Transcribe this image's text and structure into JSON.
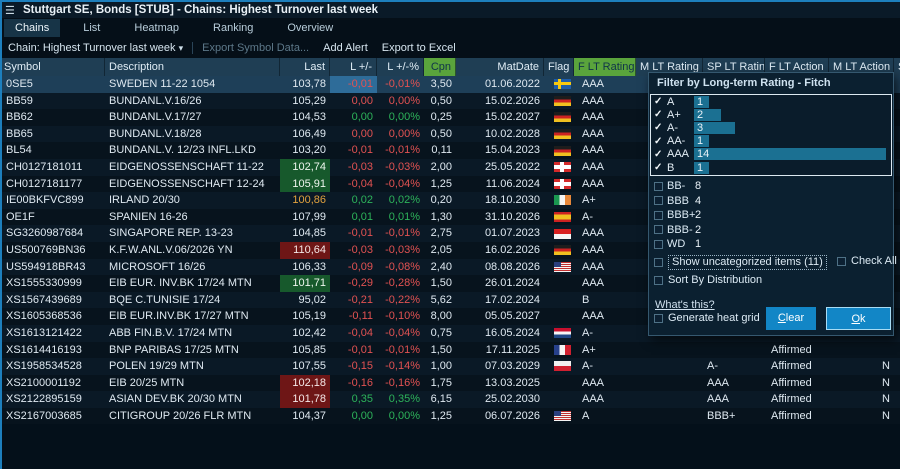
{
  "window": {
    "title": "Stuttgart SE, Bonds [STUB] - Chains: Highest Turnover last week"
  },
  "icons": {
    "menu": "☰",
    "dropdown_arrow": "▾",
    "check": "✓"
  },
  "colors": {
    "accent_blue": "#1d7fbd",
    "up_green": "#2db35a",
    "down_red": "#e25252",
    "header_green": "#5aa43c",
    "bar_teal": "#1b7092",
    "button_blue": "#1286c6",
    "flash_blue": "#2e6c99"
  },
  "tabs": [
    {
      "label": "Chains",
      "active": true
    },
    {
      "label": "List",
      "active": false
    },
    {
      "label": "Heatmap",
      "active": false
    },
    {
      "label": "Ranking",
      "active": false
    },
    {
      "label": "Overview",
      "active": false
    }
  ],
  "toolbar": {
    "chain_label": "Chain: Highest Turnover last week",
    "items": [
      {
        "label": "Export Symbol Data...",
        "disabled": true
      },
      {
        "label": "Add Alert",
        "disabled": false
      },
      {
        "label": "Export to Excel",
        "disabled": false
      }
    ]
  },
  "table": {
    "columns": [
      {
        "key": "symbol",
        "label": "Symbol",
        "align": "left",
        "green": false
      },
      {
        "key": "description",
        "label": "Description",
        "align": "left",
        "green": false
      },
      {
        "key": "last",
        "label": "Last",
        "align": "right",
        "green": false
      },
      {
        "key": "chg",
        "label": "L +/-",
        "align": "right",
        "green": false
      },
      {
        "key": "chgpct",
        "label": "L +/-%",
        "align": "right",
        "green": false
      },
      {
        "key": "cpn",
        "label": "Cpn",
        "align": "right",
        "green": true
      },
      {
        "key": "matdate",
        "label": "MatDate",
        "align": "right",
        "green": false
      },
      {
        "key": "flag",
        "label": "Flag",
        "align": "left",
        "green": false
      },
      {
        "key": "f-lt-rating",
        "label": "F LT Rating",
        "align": "left",
        "green": true
      },
      {
        "key": "m-lt-rating",
        "label": "M LT Rating",
        "align": "left",
        "green": false
      },
      {
        "key": "sp-lt-rating",
        "label": "SP LT Ratin",
        "align": "left",
        "green": false
      },
      {
        "key": "f-lt-action",
        "label": "F LT Action",
        "align": "left",
        "green": false
      },
      {
        "key": "m-lt-action",
        "label": "M LT Action",
        "align": "left",
        "green": false
      },
      {
        "key": "s-truncated",
        "label": "S",
        "align": "left",
        "green": false
      }
    ],
    "rows": [
      {
        "symbol": "0SE5",
        "desc": "SWEDEN 11-22 1054",
        "last": "103,78",
        "lastStyle": "",
        "chg": "-0,01",
        "chgPct": "-0,01%",
        "chgDir": "down",
        "chgFlash": true,
        "cpn": "3,50",
        "mat": "01.06.2022",
        "flag": "se",
        "fRating": "AAA",
        "spRating": "",
        "fAction": "",
        "mAction": "",
        "selected": true
      },
      {
        "symbol": "BB59",
        "desc": "BUNDANL.V.16/26",
        "last": "105,29",
        "lastStyle": "",
        "chg": "0,00",
        "chgPct": "0,00%",
        "chgDir": "down",
        "chgFlash": false,
        "cpn": "0,50",
        "mat": "15.02.2026",
        "flag": "de",
        "fRating": "AAA",
        "spRating": "",
        "fAction": "",
        "mAction": "",
        "selected": false
      },
      {
        "symbol": "BB62",
        "desc": "BUNDANL.V.17/27",
        "last": "104,53",
        "lastStyle": "",
        "chg": "0,00",
        "chgPct": "0,00%",
        "chgDir": "up",
        "chgFlash": false,
        "cpn": "0,25",
        "mat": "15.02.2027",
        "flag": "de",
        "fRating": "AAA",
        "spRating": "",
        "fAction": "",
        "mAction": "",
        "selected": false
      },
      {
        "symbol": "BB65",
        "desc": "BUNDANL.V.18/28",
        "last": "106,49",
        "lastStyle": "",
        "chg": "0,00",
        "chgPct": "0,00%",
        "chgDir": "down",
        "chgFlash": false,
        "cpn": "0,50",
        "mat": "10.02.2028",
        "flag": "de",
        "fRating": "AAA",
        "spRating": "",
        "fAction": "",
        "mAction": "",
        "selected": false
      },
      {
        "symbol": "BL54",
        "desc": "BUNDANL.V. 12/23 INFL.LKD",
        "last": "103,20",
        "lastStyle": "",
        "chg": "-0,01",
        "chgPct": "-0,01%",
        "chgDir": "down",
        "chgFlash": false,
        "cpn": "0,11",
        "mat": "15.04.2023",
        "flag": "de",
        "fRating": "AAA",
        "spRating": "",
        "fAction": "",
        "mAction": "",
        "selected": false
      },
      {
        "symbol": "CH0127181011",
        "desc": "EIDGENOSSENSCHAFT 11-22",
        "last": "102,74",
        "lastStyle": "bg-up",
        "chg": "-0,03",
        "chgPct": "-0,03%",
        "chgDir": "down",
        "chgFlash": false,
        "cpn": "2,00",
        "mat": "25.05.2022",
        "flag": "ch",
        "fRating": "AAA",
        "spRating": "",
        "fAction": "",
        "mAction": "",
        "selected": false
      },
      {
        "symbol": "CH0127181177",
        "desc": "EIDGENOSSENSCHAFT 12-24",
        "last": "105,91",
        "lastStyle": "bg-up",
        "chg": "-0,04",
        "chgPct": "-0,04%",
        "chgDir": "down",
        "chgFlash": false,
        "cpn": "1,25",
        "mat": "11.06.2024",
        "flag": "ch",
        "fRating": "AAA",
        "spRating": "",
        "fAction": "",
        "mAction": "",
        "selected": false
      },
      {
        "symbol": "IE00BKFVC899",
        "desc": "IRLAND 20/30",
        "last": "100,86",
        "lastStyle": "warn",
        "chg": "0,02",
        "chgPct": "0,02%",
        "chgDir": "up",
        "chgFlash": false,
        "cpn": "0,20",
        "mat": "18.10.2030",
        "flag": "ie",
        "fRating": "A+",
        "spRating": "",
        "fAction": "",
        "mAction": "",
        "selected": false
      },
      {
        "symbol": "OE1F",
        "desc": "SPANIEN 16-26",
        "last": "107,99",
        "lastStyle": "",
        "chg": "0,01",
        "chgPct": "0,01%",
        "chgDir": "up",
        "chgFlash": false,
        "cpn": "1,30",
        "mat": "31.10.2026",
        "flag": "es",
        "fRating": "A-",
        "spRating": "",
        "fAction": "",
        "mAction": "",
        "selected": false
      },
      {
        "symbol": "SG3260987684",
        "desc": "SINGAPORE REP. 13-23",
        "last": "104,85",
        "lastStyle": "",
        "chg": "-0,01",
        "chgPct": "-0,01%",
        "chgDir": "down",
        "chgFlash": false,
        "cpn": "2,75",
        "mat": "01.07.2023",
        "flag": "sg",
        "fRating": "AAA",
        "spRating": "",
        "fAction": "",
        "mAction": "",
        "selected": false
      },
      {
        "symbol": "US500769BN36",
        "desc": "K.F.W.ANL.V.06/2026 YN",
        "last": "110,64",
        "lastStyle": "bg-down",
        "chg": "-0,03",
        "chgPct": "-0,03%",
        "chgDir": "down",
        "chgFlash": false,
        "cpn": "2,05",
        "mat": "16.02.2026",
        "flag": "de",
        "fRating": "AAA",
        "spRating": "",
        "fAction": "",
        "mAction": "",
        "selected": false
      },
      {
        "symbol": "US594918BR43",
        "desc": "MICROSOFT 16/26",
        "last": "106,33",
        "lastStyle": "",
        "chg": "-0,09",
        "chgPct": "-0,08%",
        "chgDir": "down",
        "chgFlash": false,
        "cpn": "2,40",
        "mat": "08.08.2026",
        "flag": "us",
        "fRating": "AAA",
        "spRating": "",
        "fAction": "",
        "mAction": "",
        "selected": false
      },
      {
        "symbol": "XS1555330999",
        "desc": "EIB EUR. INV.BK 17/24 MTN",
        "last": "101,71",
        "lastStyle": "bg-up",
        "chg": "-0,29",
        "chgPct": "-0,28%",
        "chgDir": "down",
        "chgFlash": false,
        "cpn": "1,50",
        "mat": "26.01.2024",
        "flag": "",
        "fRating": "AAA",
        "spRating": "",
        "fAction": "",
        "mAction": "",
        "selected": false
      },
      {
        "symbol": "XS1567439689",
        "desc": "BQE C.TUNISIE 17/24",
        "last": "95,02",
        "lastStyle": "",
        "chg": "-0,21",
        "chgPct": "-0,22%",
        "chgDir": "down",
        "chgFlash": false,
        "cpn": "5,62",
        "mat": "17.02.2024",
        "flag": "",
        "fRating": "B",
        "spRating": "",
        "fAction": "",
        "mAction": "",
        "selected": false
      },
      {
        "symbol": "XS1605368536",
        "desc": "EIB EUR.INV.BK 17/27 MTN",
        "last": "105,19",
        "lastStyle": "",
        "chg": "-0,11",
        "chgPct": "-0,10%",
        "chgDir": "down",
        "chgFlash": false,
        "cpn": "8,00",
        "mat": "05.05.2027",
        "flag": "",
        "fRating": "AAA",
        "spRating": "",
        "fAction": "",
        "mAction": "",
        "selected": false
      },
      {
        "symbol": "XS1613121422",
        "desc": "ABB FIN.B.V. 17/24 MTN",
        "last": "102,42",
        "lastStyle": "",
        "chg": "-0,04",
        "chgPct": "-0,04%",
        "chgDir": "down",
        "chgFlash": false,
        "cpn": "0,75",
        "mat": "16.05.2024",
        "flag": "nl",
        "fRating": "A-",
        "spRating": "",
        "fAction": "",
        "mAction": "",
        "selected": false
      },
      {
        "symbol": "XS1614416193",
        "desc": "BNP PARIBAS 17/25 MTN",
        "last": "105,85",
        "lastStyle": "",
        "chg": "-0,01",
        "chgPct": "-0,01%",
        "chgDir": "down",
        "chgFlash": false,
        "cpn": "1,50",
        "mat": "17.11.2025",
        "flag": "fr",
        "fRating": "A+",
        "spRating": "",
        "fAction": "Affirmed",
        "mAction": "",
        "selected": false
      },
      {
        "symbol": "XS1958534528",
        "desc": "POLEN 19/29 MTN",
        "last": "107,55",
        "lastStyle": "",
        "chg": "-0,15",
        "chgPct": "-0,14%",
        "chgDir": "down",
        "chgFlash": false,
        "cpn": "1,00",
        "mat": "07.03.2029",
        "flag": "pl",
        "fRating": "A-",
        "spRating": "A-",
        "fAction": "Affirmed",
        "mAction": "N",
        "selected": false
      },
      {
        "symbol": "XS2100001192",
        "desc": "EIB 20/25 MTN",
        "last": "102,18",
        "lastStyle": "bg-down",
        "chg": "-0,16",
        "chgPct": "-0,16%",
        "chgDir": "down",
        "chgFlash": false,
        "cpn": "1,75",
        "mat": "13.03.2025",
        "flag": "",
        "fRating": "AAA",
        "spRating": "AAA",
        "fAction": "Affirmed",
        "mAction": "N",
        "selected": false
      },
      {
        "symbol": "XS2122895159",
        "desc": "ASIAN DEV.BK 20/30 MTN",
        "last": "101,78",
        "lastStyle": "bg-down",
        "chg": "0,35",
        "chgPct": "0,35%",
        "chgDir": "up",
        "chgFlash": false,
        "cpn": "6,15",
        "mat": "25.02.2030",
        "flag": "",
        "fRating": "AAA",
        "spRating": "AAA",
        "fAction": "Affirmed",
        "mAction": "N",
        "selected": false
      },
      {
        "symbol": "XS2167003685",
        "desc": "CITIGROUP 20/26 FLR MTN",
        "last": "104,37",
        "lastStyle": "",
        "chg": "0,00",
        "chgPct": "0,00%",
        "chgDir": "up",
        "chgFlash": false,
        "cpn": "1,25",
        "mat": "06.07.2026",
        "flag": "us",
        "fRating": "A",
        "spRating": "BBB+",
        "fAction": "Affirmed",
        "mAction": "N",
        "selected": false
      }
    ]
  },
  "filter_popup": {
    "title": "Filter by Long-term Rating - Fitch",
    "max_count": 14,
    "checked_items": [
      {
        "label": "A",
        "count": 1
      },
      {
        "label": "A+",
        "count": 2
      },
      {
        "label": "A-",
        "count": 3
      },
      {
        "label": "AA-",
        "count": 1
      },
      {
        "label": "AAA",
        "count": 14
      },
      {
        "label": "B",
        "count": 1
      }
    ],
    "unchecked_items": [
      {
        "label": "BB-",
        "count": 8
      },
      {
        "label": "BBB",
        "count": 4
      },
      {
        "label": "BBB+",
        "count": 2
      },
      {
        "label": "BBB-",
        "count": 2
      },
      {
        "label": "WD",
        "count": 1
      }
    ],
    "show_uncategorized_label": "Show uncategorized items (11)",
    "check_all_label": "Check All",
    "sort_by_distribution_label": "Sort By Distribution",
    "whats_this_label": "What's this?",
    "generate_heat_grid_label": "Generate heat grid",
    "clear_label": "Clear",
    "ok_label": "Ok"
  }
}
